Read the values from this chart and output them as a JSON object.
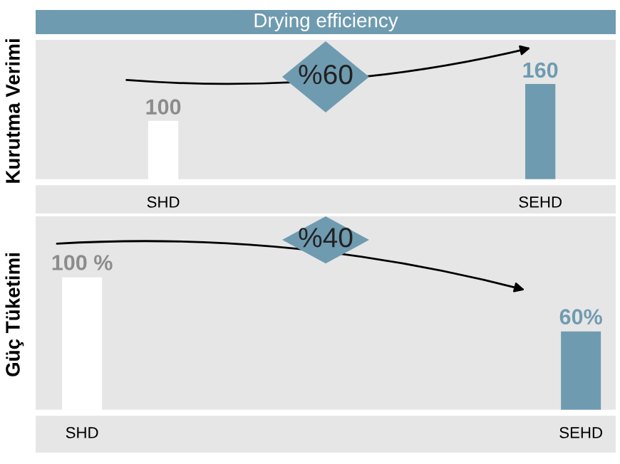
{
  "chart_data": [
    {
      "type": "bar",
      "title": "Drying efficiency",
      "ylabel": "Kurutma Verimi",
      "categories": [
        "SHD",
        "SEHD"
      ],
      "values": [
        100,
        160
      ],
      "colors": [
        "#ffffff",
        "#6f9bb0"
      ],
      "value_labels": [
        "100",
        "160"
      ],
      "annotations": [
        "%60"
      ],
      "tick_labels": "x"
    },
    {
      "type": "bar",
      "ylabel": "Güç Tüketimi",
      "categories": [
        "SHD",
        "SEHD"
      ],
      "values": [
        100,
        60
      ],
      "colors": [
        "#ffffff",
        "#6f9bb0"
      ],
      "value_labels": [
        "100 %",
        "60%"
      ],
      "annotations": [
        "%40"
      ],
      "tick_labels": "x"
    }
  ]
}
